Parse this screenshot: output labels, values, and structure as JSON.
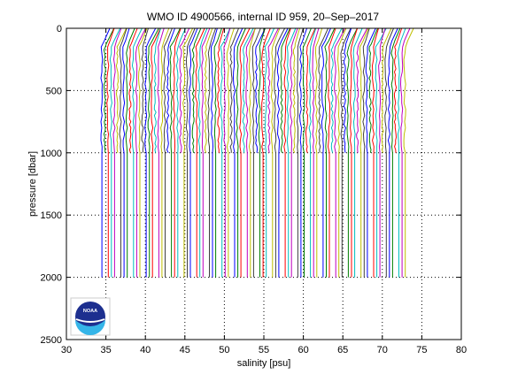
{
  "chart_data": {
    "type": "line",
    "title": "WMO ID 4900566, internal ID 959, 20–Sep–2017",
    "xlabel": "salinity [psu]",
    "ylabel": "pressure [dbar]",
    "xlim": [
      30,
      80
    ],
    "ylim": [
      0,
      2500
    ],
    "y_reversed": true,
    "grid": true,
    "xticks": [
      30,
      35,
      40,
      45,
      50,
      55,
      60,
      65,
      70,
      75,
      80
    ],
    "yticks": [
      0,
      500,
      1000,
      1500,
      2000,
      2500
    ],
    "series_count": 97,
    "offset_per_profile": 0.4,
    "first_profile_salinity": 34.8,
    "last_profile_salinity": 75.0,
    "max_pressure_deep_profiles": 2000,
    "max_pressure_shallow_profiles": 1000,
    "shallow_profile_period": 4,
    "profile_colors": [
      "#0000ff",
      "#008000",
      "#ff0000",
      "#00bfbf",
      "#bf00bf",
      "#bfbf00",
      "#404040"
    ],
    "logo": "noaa-logo"
  }
}
